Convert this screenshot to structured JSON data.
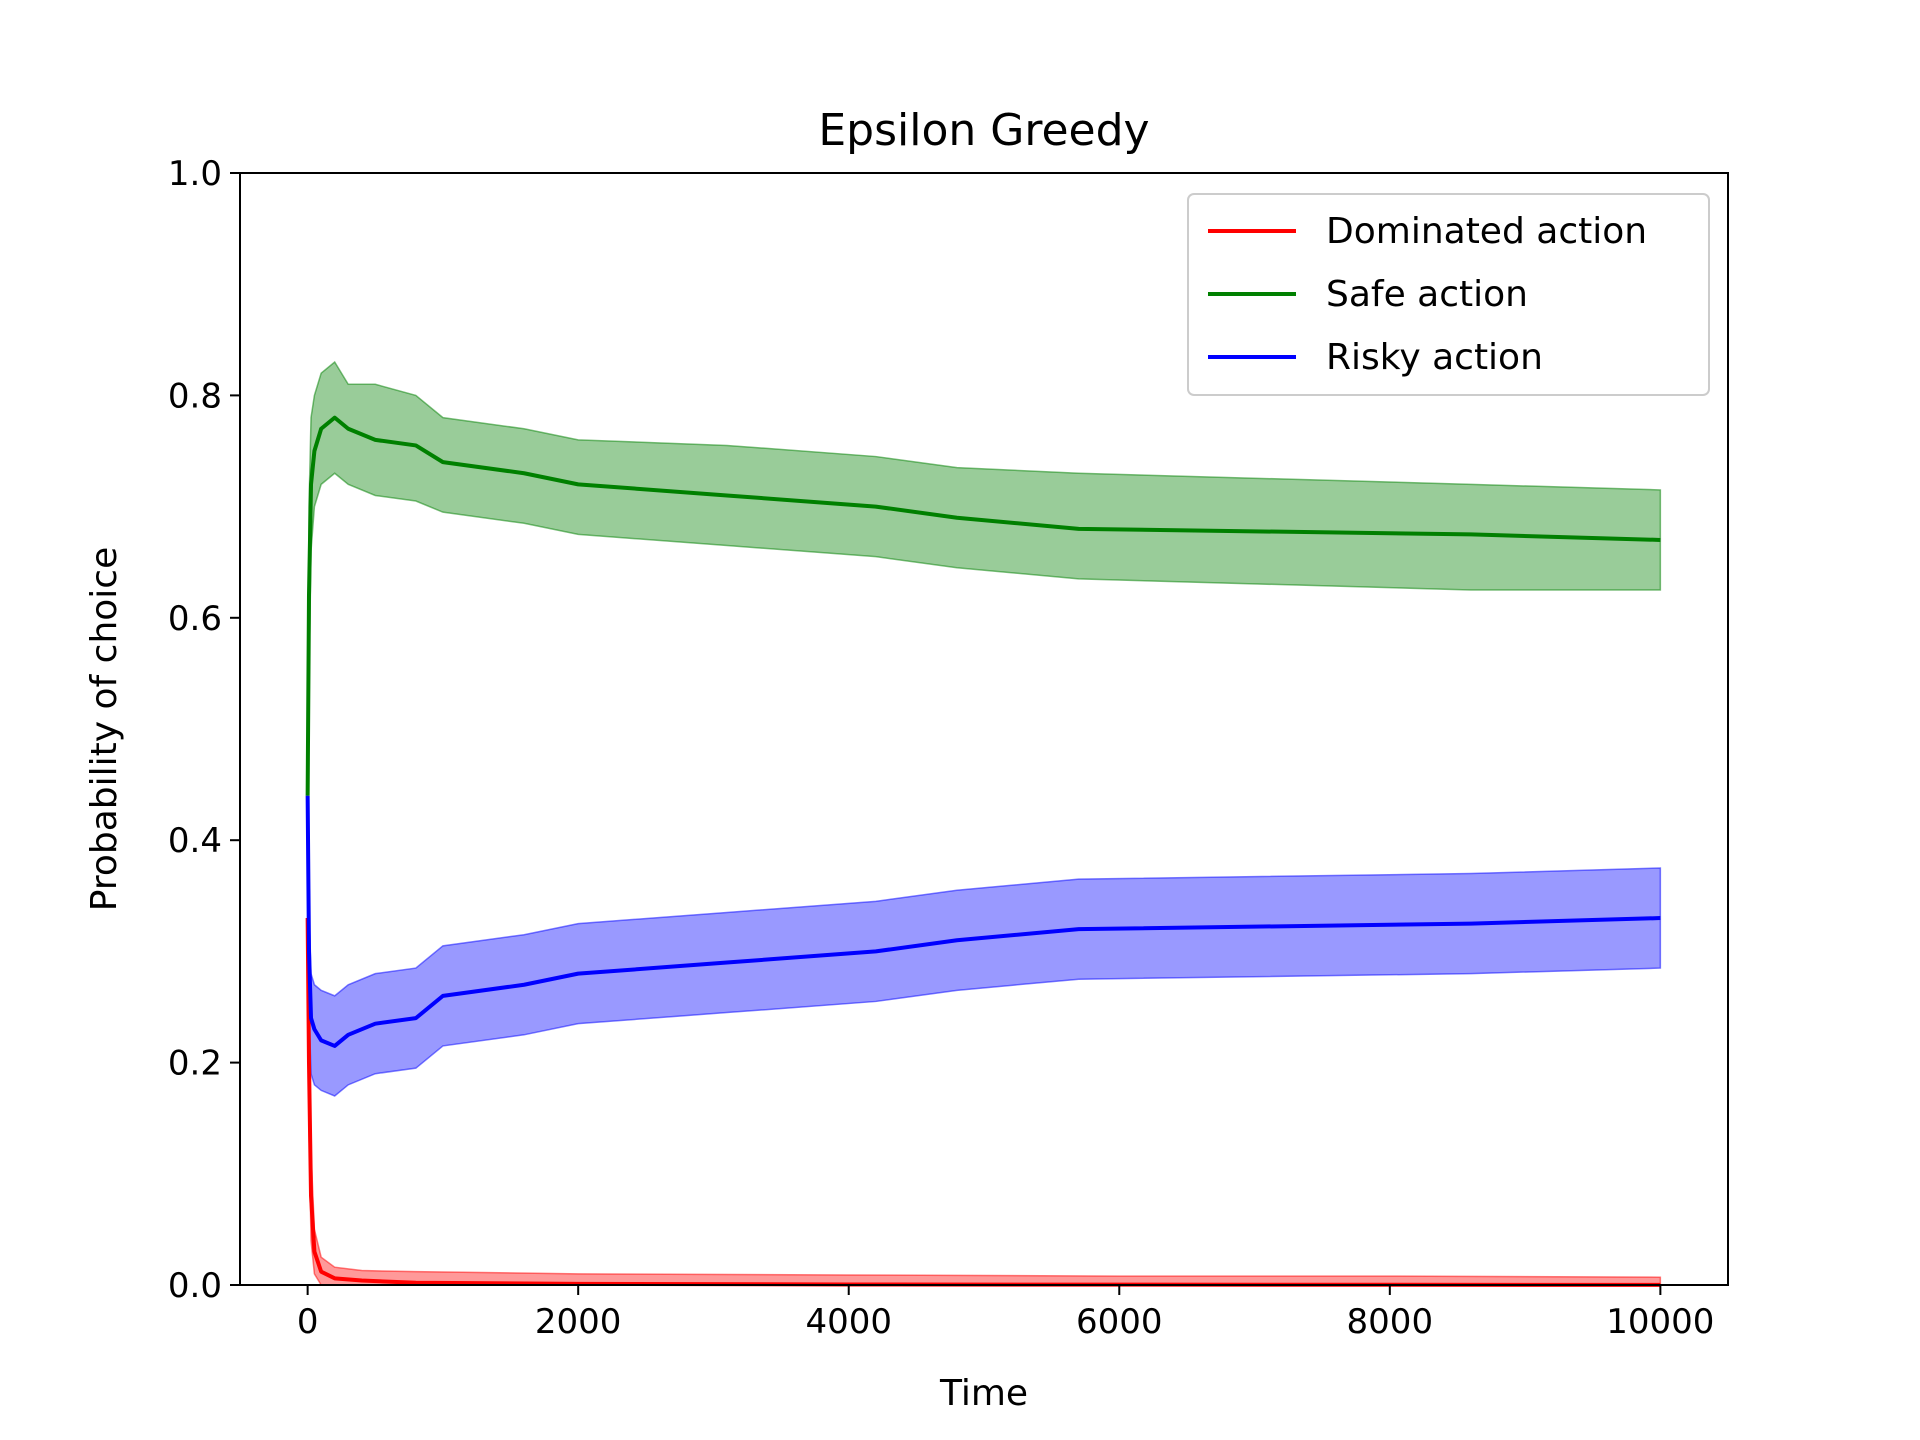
{
  "chart_data": {
    "type": "line",
    "title": "Epsilon Greedy",
    "xlabel": "Time",
    "ylabel": "Probability of choice",
    "xlim": [
      -500,
      10500
    ],
    "ylim": [
      0.0,
      1.0
    ],
    "xticks": [
      0,
      2000,
      4000,
      6000,
      8000,
      10000
    ],
    "xtick_labels": [
      "0",
      "2000",
      "4000",
      "6000",
      "8000",
      "10000"
    ],
    "yticks": [
      0.0,
      0.2,
      0.4,
      0.6,
      0.8,
      1.0
    ],
    "ytick_labels": [
      "0.0",
      "0.2",
      "0.4",
      "0.6",
      "0.8",
      "1.0"
    ],
    "grid": false,
    "legend_position": "top-right",
    "series": [
      {
        "name": "Dominated action",
        "color": "#ff0000",
        "x": [
          0,
          10,
          25,
          50,
          100,
          200,
          400,
          800,
          2000,
          4000,
          6000,
          8000,
          10000
        ],
        "y": [
          0.33,
          0.2,
          0.08,
          0.03,
          0.012,
          0.006,
          0.004,
          0.002,
          0.001,
          0.0005,
          0.0003,
          0.0002,
          0.0001
        ],
        "band_upper": [
          0.33,
          0.26,
          0.12,
          0.05,
          0.025,
          0.016,
          0.013,
          0.012,
          0.01,
          0.009,
          0.008,
          0.008,
          0.007
        ],
        "band_lower": [
          0.33,
          0.14,
          0.04,
          0.01,
          0.0,
          0.0,
          0.0,
          0.0,
          0.0,
          0.0,
          0.0,
          0.0,
          0.0
        ]
      },
      {
        "name": "Safe action",
        "color": "#008000",
        "x": [
          0,
          10,
          25,
          50,
          100,
          200,
          300,
          500,
          800,
          1000,
          1600,
          2000,
          3100,
          4200,
          4800,
          5700,
          8600,
          10000
        ],
        "y": [
          0.44,
          0.62,
          0.72,
          0.75,
          0.77,
          0.78,
          0.77,
          0.76,
          0.755,
          0.74,
          0.73,
          0.72,
          0.71,
          0.7,
          0.69,
          0.68,
          0.675,
          0.67
        ],
        "band_upper": [
          0.44,
          0.7,
          0.78,
          0.8,
          0.82,
          0.83,
          0.81,
          0.81,
          0.8,
          0.78,
          0.77,
          0.76,
          0.755,
          0.745,
          0.735,
          0.73,
          0.72,
          0.715
        ],
        "band_lower": [
          0.44,
          0.54,
          0.66,
          0.7,
          0.72,
          0.73,
          0.72,
          0.71,
          0.705,
          0.695,
          0.685,
          0.675,
          0.665,
          0.655,
          0.645,
          0.635,
          0.625,
          0.625
        ]
      },
      {
        "name": "Risky action",
        "color": "#0000ff",
        "x": [
          0,
          10,
          25,
          50,
          100,
          200,
          300,
          500,
          800,
          1000,
          1600,
          2000,
          3100,
          4200,
          4800,
          5700,
          8600,
          10000
        ],
        "y": [
          0.44,
          0.3,
          0.24,
          0.23,
          0.22,
          0.215,
          0.225,
          0.235,
          0.24,
          0.26,
          0.27,
          0.28,
          0.29,
          0.3,
          0.31,
          0.32,
          0.325,
          0.33
        ],
        "band_upper": [
          0.44,
          0.34,
          0.28,
          0.27,
          0.265,
          0.26,
          0.27,
          0.28,
          0.285,
          0.305,
          0.315,
          0.325,
          0.335,
          0.345,
          0.355,
          0.365,
          0.37,
          0.375
        ],
        "band_lower": [
          0.44,
          0.25,
          0.19,
          0.18,
          0.175,
          0.17,
          0.18,
          0.19,
          0.195,
          0.215,
          0.225,
          0.235,
          0.245,
          0.255,
          0.265,
          0.275,
          0.28,
          0.285
        ]
      }
    ]
  }
}
